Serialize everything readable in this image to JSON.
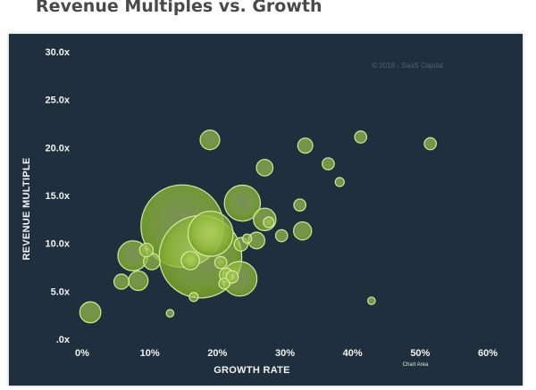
{
  "page_title": "Revenue Multiples vs. Growth",
  "chart_data": {
    "type": "scatter",
    "xlabel": "GROWTH RATE",
    "ylabel": "REVENUE MULTIPLE",
    "copyright": "© 2019 - SaaS Capital",
    "chart_area_label": "Chart Area",
    "x_ticks": [
      "0%",
      "10%",
      "20%",
      "30%",
      "40%",
      "50%",
      "60%"
    ],
    "y_ticks": [
      ".0x",
      "5.0x",
      "10.0x",
      "15.0x",
      "20.0x",
      "25.0x",
      "30.0x"
    ],
    "xlim": [
      0,
      60
    ],
    "ylim": [
      0,
      30
    ],
    "grid": false,
    "bubble_color": "#9bc53d",
    "points": [
      {
        "x": 1.2,
        "y": 2.8,
        "size": 1.4
      },
      {
        "x": 5.8,
        "y": 6.0,
        "size": 1.0
      },
      {
        "x": 8.3,
        "y": 6.1,
        "size": 1.3
      },
      {
        "x": 7.5,
        "y": 8.7,
        "size": 2.0
      },
      {
        "x": 9.5,
        "y": 9.3,
        "size": 0.9
      },
      {
        "x": 10.3,
        "y": 8.1,
        "size": 1.1
      },
      {
        "x": 13.0,
        "y": 2.7,
        "size": 0.5
      },
      {
        "x": 14.8,
        "y": 11.8,
        "size": 5.5
      },
      {
        "x": 17.5,
        "y": 8.6,
        "size": 5.5
      },
      {
        "x": 16.0,
        "y": 8.2,
        "size": 1.2
      },
      {
        "x": 16.5,
        "y": 4.4,
        "size": 0.6
      },
      {
        "x": 19.0,
        "y": 11.0,
        "size": 3.0
      },
      {
        "x": 20.5,
        "y": 8.0,
        "size": 0.8
      },
      {
        "x": 21.3,
        "y": 6.7,
        "size": 0.9
      },
      {
        "x": 21.0,
        "y": 5.8,
        "size": 0.7
      },
      {
        "x": 22.2,
        "y": 6.5,
        "size": 0.8
      },
      {
        "x": 23.3,
        "y": 6.3,
        "size": 2.3
      },
      {
        "x": 23.5,
        "y": 9.9,
        "size": 0.9
      },
      {
        "x": 24.4,
        "y": 10.5,
        "size": 0.6
      },
      {
        "x": 23.7,
        "y": 14.2,
        "size": 2.4
      },
      {
        "x": 25.8,
        "y": 10.3,
        "size": 1.1
      },
      {
        "x": 18.9,
        "y": 20.8,
        "size": 1.3
      },
      {
        "x": 27.0,
        "y": 17.9,
        "size": 1.1
      },
      {
        "x": 27.0,
        "y": 12.5,
        "size": 1.5
      },
      {
        "x": 27.6,
        "y": 12.2,
        "size": 0.7
      },
      {
        "x": 29.5,
        "y": 10.8,
        "size": 0.8
      },
      {
        "x": 32.2,
        "y": 14.0,
        "size": 0.8
      },
      {
        "x": 32.6,
        "y": 11.3,
        "size": 1.2
      },
      {
        "x": 33.0,
        "y": 20.2,
        "size": 1.0
      },
      {
        "x": 36.4,
        "y": 18.3,
        "size": 0.8
      },
      {
        "x": 38.1,
        "y": 16.4,
        "size": 0.6
      },
      {
        "x": 41.2,
        "y": 21.1,
        "size": 0.8
      },
      {
        "x": 42.8,
        "y": 4.0,
        "size": 0.5
      },
      {
        "x": 51.5,
        "y": 20.4,
        "size": 0.8
      }
    ]
  }
}
